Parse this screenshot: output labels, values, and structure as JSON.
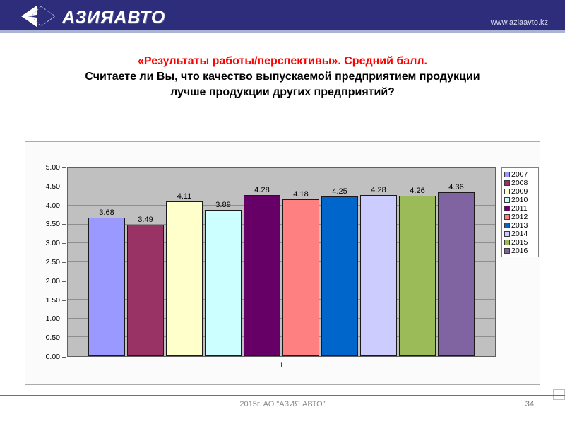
{
  "header": {
    "logo_text": "АЗИЯАВТО",
    "url": "www.aziaavto.kz"
  },
  "title": {
    "line1_red": "«Результаты работы/перспективы». Средний балл.",
    "line2": "Считаете ли Вы, что качество выпускаемой предприятием продукции",
    "line3": "лучше продукции других предприятий?"
  },
  "chart_data": {
    "type": "bar",
    "title": "",
    "categories": [
      "1"
    ],
    "series": [
      {
        "name": "2007",
        "values": [
          3.68
        ],
        "data_label": "3.68",
        "color": "#9999FF"
      },
      {
        "name": "2008",
        "values": [
          3.49
        ],
        "data_label": "3.49",
        "color": "#993366"
      },
      {
        "name": "2009",
        "values": [
          4.11
        ],
        "data_label": "4.11",
        "color": "#FFFFCC"
      },
      {
        "name": "2010",
        "values": [
          3.89
        ],
        "data_label": "3.89",
        "color": "#CCFFFF"
      },
      {
        "name": "2011",
        "values": [
          4.28
        ],
        "data_label": "4.28",
        "color": "#660066"
      },
      {
        "name": "2012",
        "values": [
          4.18
        ],
        "data_label": "4.18",
        "color": "#FF8080"
      },
      {
        "name": "2013",
        "values": [
          4.25
        ],
        "data_label": "4.25",
        "color": "#0066CC"
      },
      {
        "name": "2014",
        "values": [
          4.28
        ],
        "data_label": "4.28",
        "color": "#CCCCFF"
      },
      {
        "name": "2015",
        "values": [
          4.26
        ],
        "data_label": "4.26",
        "color": "#9BBB59"
      },
      {
        "name": "2016",
        "values": [
          4.36
        ],
        "data_label": "4.36",
        "color": "#8064A2"
      }
    ],
    "xlabel": "",
    "ylabel": "",
    "ylim": [
      0,
      5
    ],
    "ytick_step": 0.5,
    "ytick_labels": [
      "0.00",
      "0.50",
      "1.00",
      "1.50",
      "2.00",
      "2.50",
      "3.00",
      "3.50",
      "4.00",
      "4.50",
      "5.00"
    ],
    "grid": true,
    "legend_position": "right",
    "plot_background": "#C0C0C0"
  },
  "footer": {
    "text": "2015г. АО \"АЗИЯ АВТО\"",
    "page_number": "34"
  }
}
